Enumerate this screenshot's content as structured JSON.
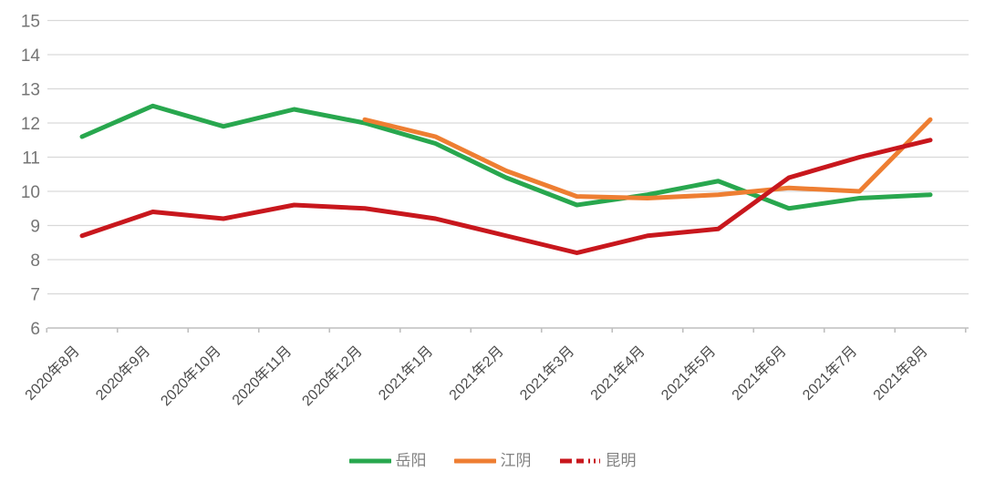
{
  "chart_data": {
    "type": "line",
    "title": "",
    "xlabel": "",
    "ylabel": "",
    "categories": [
      "2020年8月",
      "2020年9月",
      "2020年10月",
      "2020年11月",
      "2020年12月",
      "2021年1月",
      "2021年2月",
      "2021年3月",
      "2021年4月",
      "2021年5月",
      "2021年6月",
      "2021年7月",
      "2021年8月"
    ],
    "series": [
      {
        "name": "岳阳",
        "color": "#28a74e",
        "legend_dash": false,
        "values": [
          11.6,
          12.5,
          11.9,
          12.4,
          12.0,
          11.4,
          10.4,
          9.6,
          9.9,
          10.3,
          9.5,
          9.8,
          9.9
        ]
      },
      {
        "name": "江阴",
        "color": "#ee7e32",
        "legend_dash": false,
        "values": [
          null,
          null,
          null,
          null,
          12.1,
          11.6,
          10.6,
          9.85,
          9.8,
          9.9,
          10.1,
          10.0,
          12.1
        ]
      },
      {
        "name": "昆明",
        "color": "#c8171d",
        "legend_dash": true,
        "values": [
          8.7,
          9.4,
          9.2,
          9.6,
          9.5,
          9.2,
          8.7,
          8.2,
          8.7,
          8.9,
          10.4,
          11.0,
          11.5
        ]
      }
    ],
    "ylim": [
      6,
      15
    ],
    "ytick_step": 1,
    "yticks": [
      "6",
      "7",
      "8",
      "9",
      "10",
      "11",
      "12",
      "13",
      "14",
      "15"
    ],
    "grid": true,
    "legend_position": "bottom",
    "colors": {
      "grid": "#d9d9d9",
      "axis": "#bfbfbf",
      "ytick_label": "#757575",
      "xtick_label": "#4c4c4c"
    }
  }
}
